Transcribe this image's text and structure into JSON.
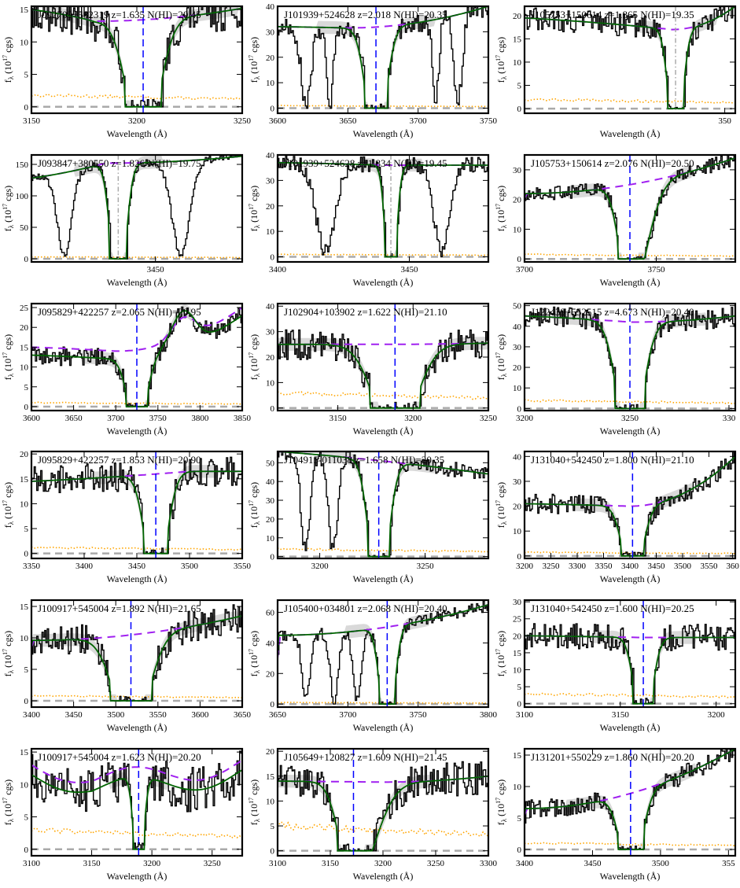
{
  "figure": {
    "xlabel": "Wavelength (Å)",
    "ylabel_main": "f",
    "ylabel_sub": "λ",
    "ylabel_rest": "(10",
    "ylabel_exp": "17",
    "ylabel_unit": " cgs)"
  },
  "colors": {
    "data": "#000000",
    "model": "#006400",
    "continuum": "#a020f0",
    "error": "#ffa500",
    "center": "#0000ff",
    "center_alt": "#aaaaaa",
    "band": "#d9d9d9",
    "zero": "#aaaaaa"
  },
  "chart_data": [
    {
      "type": "line",
      "title": "J092709+582319 z=1.635 N(HI)=20.45",
      "xlim": [
        3150,
        3250
      ],
      "ylim": [
        -1,
        15.5
      ],
      "xticks": [
        3150,
        3200,
        3250
      ],
      "yticks": [
        0,
        5,
        10,
        15
      ],
      "x0": 3203,
      "w": 15,
      "cont": [
        15,
        13.2,
        15.2
      ],
      "cont_min": 3180,
      "center_style": "blue",
      "depth": 14.5,
      "noise": 3,
      "lines": [],
      "err": 1.8
    },
    {
      "type": "line",
      "title": "J101939+524628 z=2.018 N(HI)=20.35",
      "xlim": [
        3600,
        3750
      ],
      "ylim": [
        -2,
        40
      ],
      "xticks": [
        3600,
        3650,
        3700,
        3750
      ],
      "yticks": [
        0,
        10,
        20,
        30,
        40
      ],
      "x0": 3670,
      "w": 14,
      "cont": [
        32,
        31.5,
        40
      ],
      "cont_min": 3650,
      "center_style": "blue",
      "depth": 31,
      "noise": 4,
      "lines": [
        [
          3620,
          5,
          28
        ],
        [
          3637,
          3,
          20
        ],
        [
          3712,
          3,
          20
        ],
        [
          3728,
          4,
          18
        ]
      ],
      "err": 1
    },
    {
      "type": "line",
      "title": "J105753+150614 z=1.865 N(HI)=19.35",
      "xlim": [
        3440,
        3500
      ],
      "ylim": [
        -1,
        22
      ],
      "xticks": [],
      "xtick_labels_custom": [
        [
          3497,
          "350"
        ]
      ],
      "yticks": [
        0,
        5,
        10,
        15,
        20
      ],
      "x0": 3483,
      "w": 4,
      "cont": [
        19.5,
        17,
        22
      ],
      "cont_min": 3482,
      "center_style": "gray",
      "depth": 17,
      "noise": 2.5,
      "lines": [],
      "err": 2
    },
    {
      "type": "line",
      "title": "J093847+380550 z=1.826 N(HI)=19.75",
      "xlim": [
        3400,
        3485
      ],
      "ylim": [
        -5,
        165
      ],
      "xticks": [
        3450
      ],
      "yticks": [
        0,
        50,
        100,
        150
      ],
      "x0": 3435,
      "w": 6,
      "cont": [
        128,
        152,
        163
      ],
      "cont_min": 3430,
      "center_style": "gray",
      "depth": 130,
      "noise": 6,
      "lines": [
        [
          3413,
          4,
          80
        ],
        [
          3460,
          5,
          80
        ]
      ],
      "err": 3
    },
    {
      "type": "line",
      "title": "J101939+524628 z=1.834 N(HI)=19.45",
      "xlim": [
        3400,
        3480
      ],
      "ylim": [
        -2,
        40
      ],
      "xticks": [
        3400,
        3450
      ],
      "yticks": [
        0,
        10,
        20,
        30,
        40
      ],
      "x0": 3443,
      "w": 4,
      "cont": [
        37,
        36,
        36
      ],
      "cont_min": 3440,
      "center_style": "gray",
      "depth": 34,
      "noise": 3,
      "lines": [
        [
          3418,
          5,
          27
        ],
        [
          3462,
          4,
          25
        ]
      ],
      "err": 1
    },
    {
      "type": "line",
      "title": "J105753+150614 z=2.076 N(HI)=20.50",
      "xlim": [
        3700,
        3780
      ],
      "ylim": [
        -1,
        35
      ],
      "xticks": [
        3700,
        3750
      ],
      "yticks": [
        0,
        10,
        20,
        30
      ],
      "x0": 3740,
      "w": 8,
      "cont": [
        20.5,
        22,
        34
      ],
      "cont_min": 3700,
      "center_style": "blue",
      "depth": 20,
      "noise": 2.5,
      "lines": [],
      "err": 1.5,
      "asym": true
    },
    {
      "type": "line",
      "title": "J095829+422257 z=2.065 N(HI)=20.95",
      "xlim": [
        3600,
        3850
      ],
      "ylim": [
        -1,
        26
      ],
      "xticks": [
        3600,
        3650,
        3700,
        3750,
        3800,
        3850
      ],
      "yticks": [
        0,
        5,
        10,
        15,
        20,
        25
      ],
      "x0": 3725,
      "w": 22,
      "cont": [
        15,
        14,
        25
      ],
      "cont_min": 3700,
      "center_style": "blue",
      "depth": 14,
      "noise": 2.5,
      "lines": [],
      "err": 1,
      "bump": [
        3780,
        20,
        9
      ]
    },
    {
      "type": "line",
      "title": "J102904+103902 z=1.622 N(HI)=21.10",
      "xlim": [
        3110,
        3250
      ],
      "ylim": [
        -1,
        41
      ],
      "xticks": [
        3150,
        3200,
        3250
      ],
      "yticks": [
        0,
        10,
        20,
        30,
        40
      ],
      "x0": 3188,
      "w": 28,
      "cont": [
        25,
        25,
        25.5
      ],
      "cont_min": 3180,
      "center_style": "blue",
      "depth": 23,
      "noise": 6,
      "lines": [],
      "err": 6
    },
    {
      "type": "line",
      "title": "J122439+552515 z=4.673 N(HI)=20.40",
      "xlim": [
        3200,
        3300
      ],
      "ylim": [
        -1,
        51
      ],
      "xticks": [
        3200,
        3250
      ],
      "xtick_labels_custom": [
        [
          3297,
          "330"
        ]
      ],
      "yticks": [
        0,
        10,
        20,
        30,
        40,
        50
      ],
      "x0": 3250,
      "w": 12,
      "cont": [
        45,
        42,
        45
      ],
      "cont_min": 3250,
      "center_style": "blue",
      "depth": 43,
      "noise": 5,
      "lines": [],
      "err": 4
    },
    {
      "type": "line",
      "title": "J095829+422257 z=1.853 N(HI)=20.90",
      "xlim": [
        3350,
        3550
      ],
      "ylim": [
        -1,
        20.5
      ],
      "xticks": [
        3350,
        3400,
        3450,
        3500,
        3550
      ],
      "yticks": [
        0,
        5,
        10,
        15,
        20
      ],
      "x0": 3468,
      "w": 20,
      "cont": [
        14.5,
        16.5,
        16.5
      ],
      "cont_min": 3500,
      "center_style": "blue",
      "depth": 15,
      "noise": 3,
      "lines": [],
      "err": 1.2
    },
    {
      "type": "line",
      "title": "J104915-011038 z=1.658 N(HI)=20.35",
      "xlim": [
        3180,
        3280
      ],
      "ylim": [
        -1,
        56
      ],
      "xticks": [
        3200,
        3250
      ],
      "yticks": [
        0,
        10,
        20,
        30,
        40,
        50
      ],
      "x0": 3228,
      "w": 9,
      "cont": [
        56,
        44,
        41
      ],
      "cont_min": 3280,
      "center_style": "blue",
      "depth": 40,
      "noise": 4,
      "lines": [
        [
          3193,
          3,
          25
        ],
        [
          3206,
          3,
          20
        ]
      ],
      "err": 4
    },
    {
      "type": "line",
      "title": "J131040+542450 z=1.800 N(HI)=21.10",
      "xlim": [
        3200,
        3600
      ],
      "ylim": [
        -1,
        42
      ],
      "xticks": [
        3200,
        3250,
        3300,
        3350,
        3400,
        3450,
        3500,
        3550
      ],
      "xtick_labels_custom": [
        [
          3595,
          "360"
        ]
      ],
      "yticks": [
        0,
        10,
        20,
        30,
        40
      ],
      "x0": 3405,
      "w": 38,
      "cont": [
        21,
        20,
        40
      ],
      "cont_min": 3400,
      "center_style": "blue",
      "depth": 20,
      "noise": 4,
      "lines": [],
      "err": 1.5
    },
    {
      "type": "line",
      "title": "J100917+545004 z=1.892 N(HI)=21.65",
      "xlim": [
        3400,
        3650
      ],
      "ylim": [
        -1,
        16
      ],
      "xticks": [
        3400,
        3450,
        3500,
        3550,
        3600,
        3650
      ],
      "yticks": [
        0,
        5,
        10,
        15
      ],
      "x0": 3518,
      "w": 42,
      "cont": [
        8.6,
        9.6,
        13.5
      ],
      "cont_min": 3400,
      "center_style": "blue",
      "depth": 8,
      "noise": 2.5,
      "lines": [],
      "err": 0.8
    },
    {
      "type": "line",
      "title": "J105400+034801 z=2.068 N(HI)=20.40",
      "xlim": [
        3650,
        3800
      ],
      "ylim": [
        -2,
        68
      ],
      "xticks": [
        3650,
        3700,
        3750,
        3800
      ],
      "yticks": [
        0,
        20,
        40,
        60
      ],
      "x0": 3728,
      "w": 10,
      "cont": [
        30,
        45,
        65
      ],
      "cont_min": 3650,
      "center_style": "blue",
      "depth": 38,
      "noise": 4,
      "lines": [
        [
          3670,
          4,
          28
        ],
        [
          3690,
          4,
          30
        ],
        [
          3706,
          4,
          34
        ]
      ],
      "err": 1
    },
    {
      "type": "line",
      "title": "J131040+542450 z=1.600 N(HI)=20.25",
      "xlim": [
        3100,
        3210
      ],
      "ylim": [
        -1,
        30.5
      ],
      "xticks": [
        3100,
        3150,
        3200
      ],
      "yticks": [
        0,
        5,
        10,
        15,
        20,
        25,
        30
      ],
      "x0": 3162,
      "w": 9,
      "cont": [
        20,
        19.5,
        19.5
      ],
      "cont_min": 3160,
      "center_style": "blue",
      "depth": 19,
      "noise": 4,
      "lines": [],
      "err": 3
    },
    {
      "type": "line",
      "title": "J100917+545004 z=1.623 N(HI)=20.20",
      "xlim": [
        3100,
        3275
      ],
      "ylim": [
        -1,
        15.5
      ],
      "xticks": [
        3100,
        3150,
        3200,
        3250
      ],
      "yticks": [
        0,
        5,
        10,
        15
      ],
      "x0": 3189,
      "w": 8,
      "cont": [
        11.5,
        9.5,
        11.8
      ],
      "cont_min": 3150,
      "center_style": "blue",
      "depth": 10,
      "noise": 3.5,
      "lines": [],
      "err": 3,
      "wavy": true
    },
    {
      "type": "line",
      "title": "J105649+120827 z=1.609 N(HI)=21.45",
      "xlim": [
        3100,
        3300
      ],
      "ylim": [
        -1,
        20.5
      ],
      "xticks": [
        3100,
        3150,
        3200,
        3250,
        3300
      ],
      "yticks": [
        0,
        5,
        10,
        15,
        20
      ],
      "x0": 3172,
      "w": 26,
      "cont": [
        14,
        13.8,
        15
      ],
      "cont_min": 3200,
      "center_style": "blue",
      "depth": 12,
      "noise": 3.5,
      "lines": [],
      "err": 5,
      "asym": true
    },
    {
      "type": "line",
      "title": "J131201+550229 z=1.860 N(HI)=20.20",
      "xlim": [
        3400,
        3555
      ],
      "ylim": [
        -1,
        16
      ],
      "xticks": [
        3400,
        3450,
        3500
      ],
      "xtick_labels_custom": [
        [
          3550,
          "355"
        ]
      ],
      "yticks": [
        0,
        5,
        10,
        15
      ],
      "x0": 3478,
      "w": 16,
      "cont": [
        5.5,
        6.5,
        16
      ],
      "cont_min": 3400,
      "center_style": "blue",
      "depth": 5,
      "noise": 1.5,
      "lines": [],
      "err": 1
    }
  ]
}
